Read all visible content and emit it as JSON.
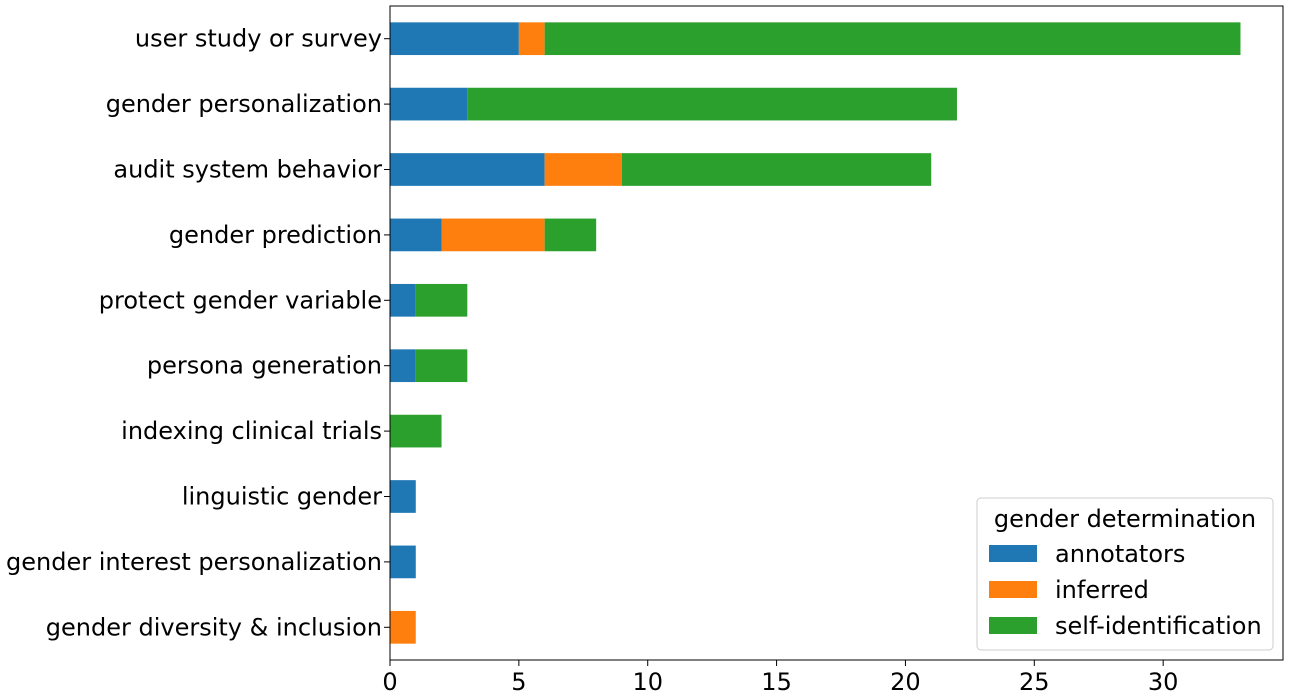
{
  "chart_data": {
    "type": "bar",
    "orientation": "horizontal",
    "stacked": true,
    "categories": [
      "user study or survey",
      "gender personalization",
      "audit system behavior",
      "gender prediction",
      "protect gender variable",
      "persona generation",
      "indexing clinical trials",
      "linguistic gender",
      "gender interest personalization",
      "gender diversity & inclusion"
    ],
    "series": [
      {
        "name": "annotators",
        "color": "#1f77b4",
        "values": [
          5,
          3,
          6,
          2,
          1,
          1,
          0,
          1,
          1,
          0
        ]
      },
      {
        "name": "inferred",
        "color": "#ff7f0e",
        "values": [
          1,
          0,
          3,
          4,
          0,
          0,
          0,
          0,
          0,
          1
        ]
      },
      {
        "name": "self-identification",
        "color": "#2ca02c",
        "values": [
          27,
          19,
          12,
          2,
          2,
          2,
          2,
          0,
          0,
          0
        ]
      }
    ],
    "xlim": [
      0,
      34.65
    ],
    "xticks": [
      0,
      5,
      10,
      15,
      20,
      25,
      30
    ],
    "title": "",
    "xlabel": "",
    "ylabel": "",
    "legend_title": "gender determination",
    "legend_position": "lower-right",
    "grid": false
  }
}
